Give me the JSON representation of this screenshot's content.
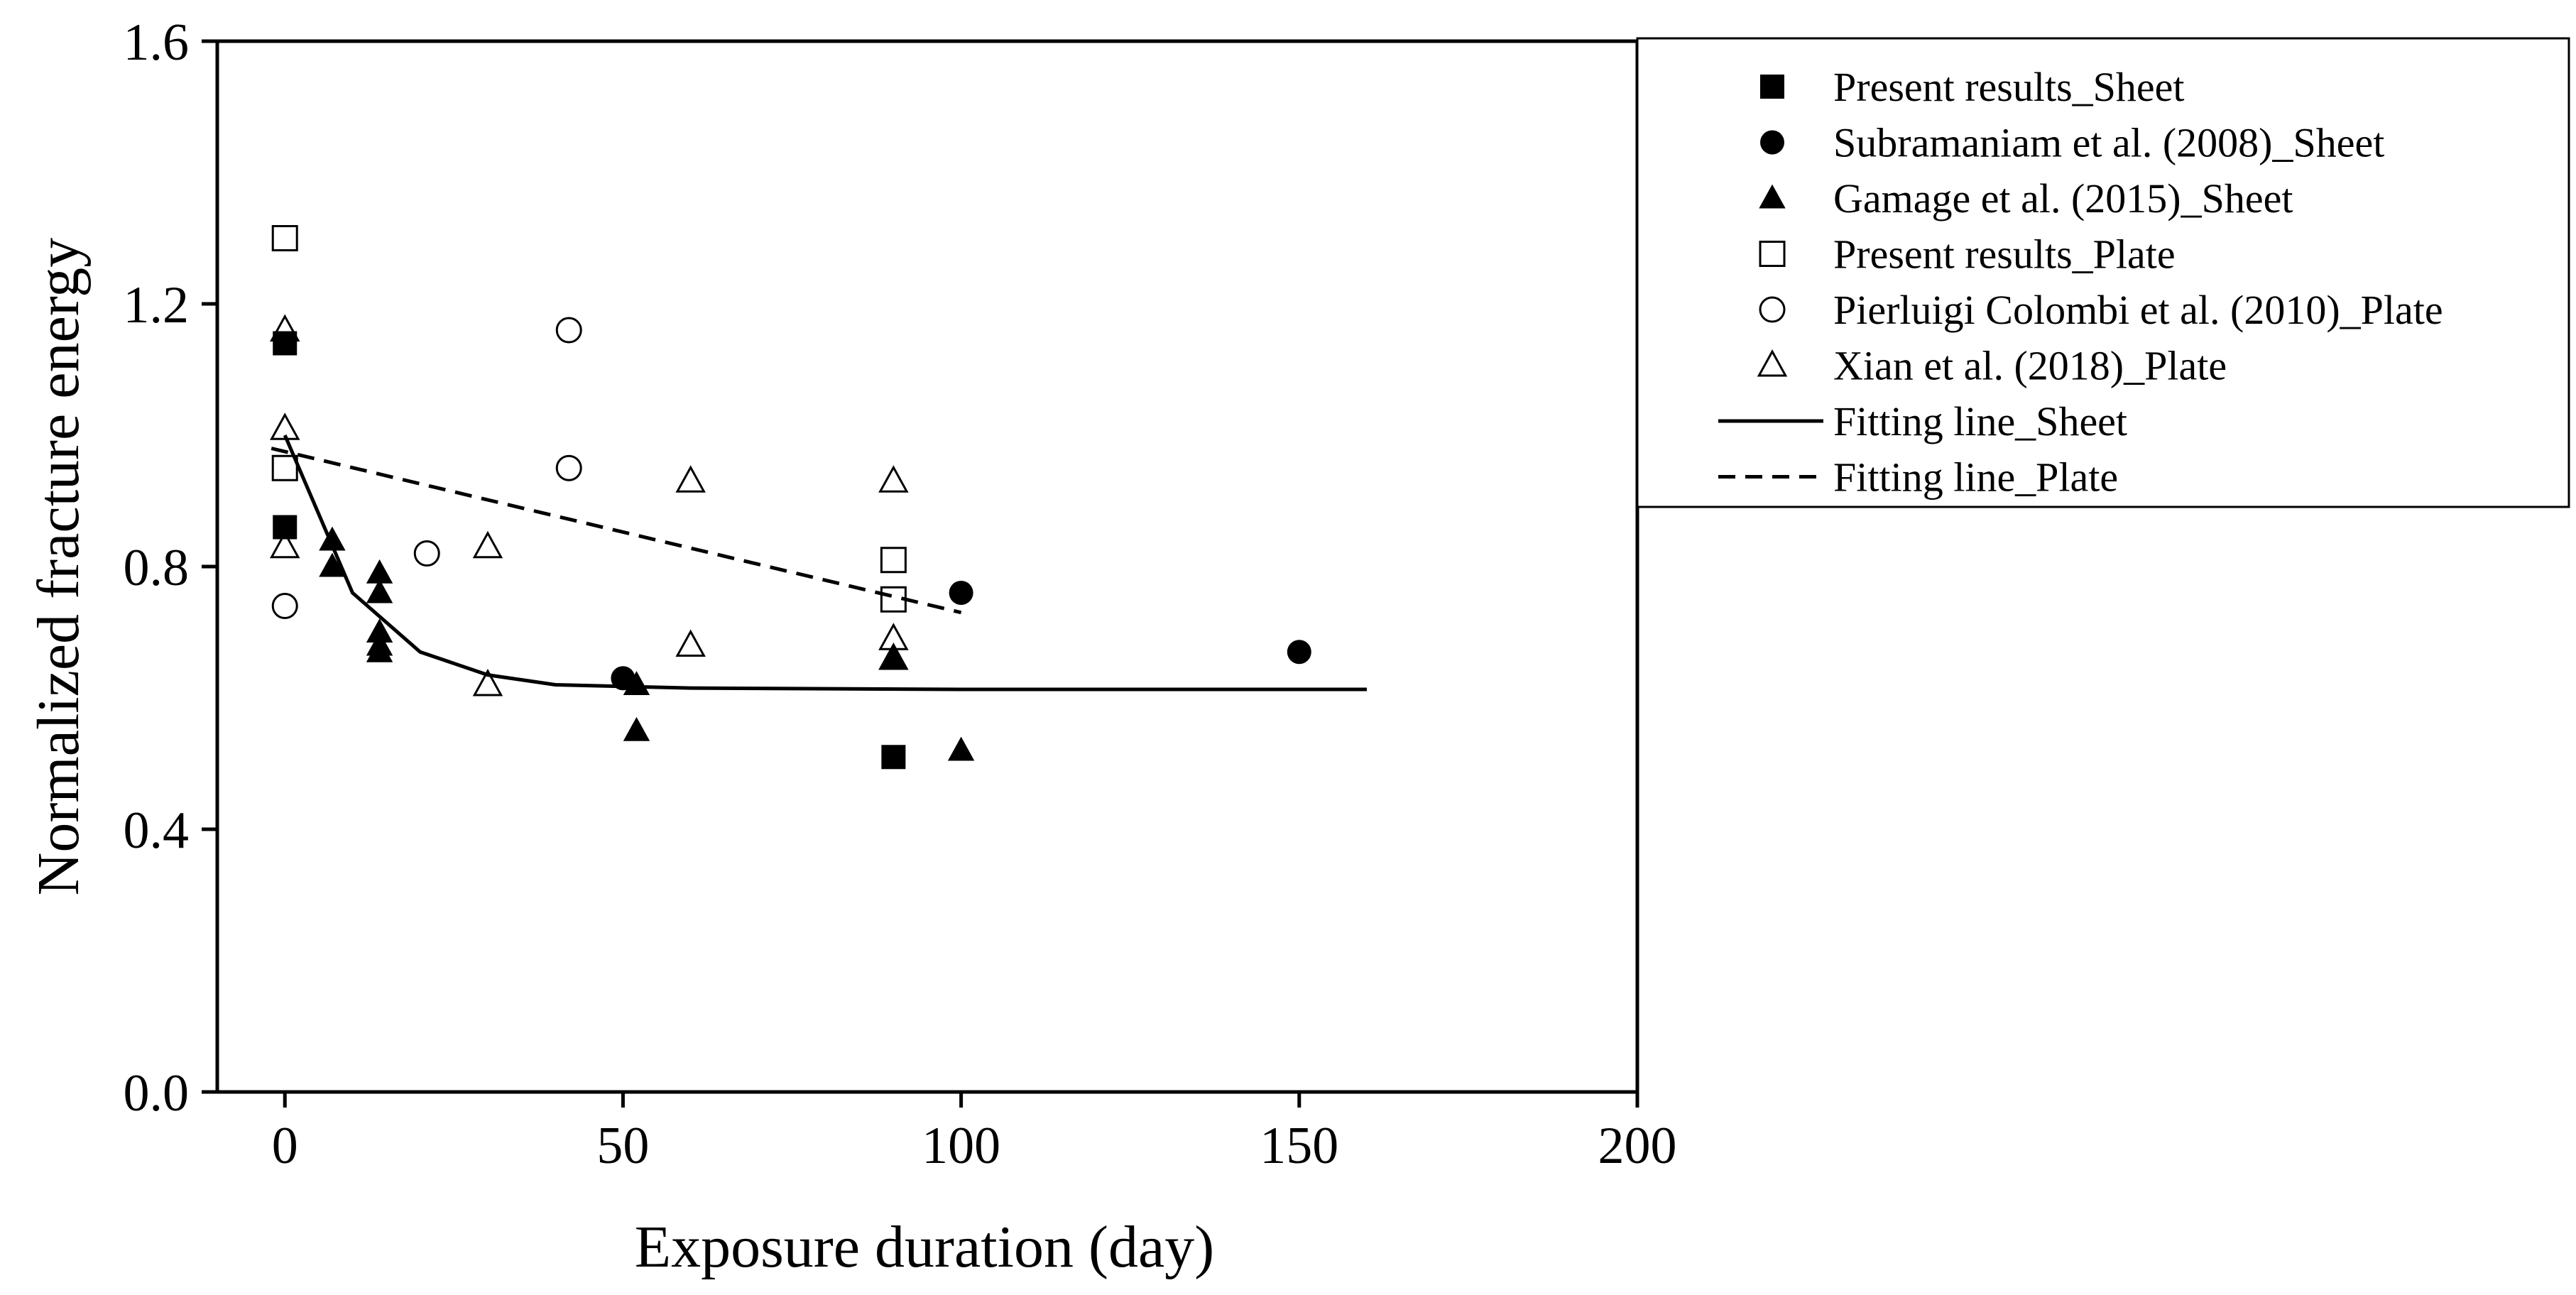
{
  "chart_data": {
    "type": "scatter",
    "title": "",
    "xlabel": "Exposure duration (day)",
    "ylabel": "Normalized fracture energy",
    "xlim": [
      -10,
      200
    ],
    "ylim": [
      0.0,
      1.6
    ],
    "xticks": [
      0,
      50,
      100,
      150,
      200
    ],
    "yticks": [
      0.0,
      0.4,
      0.8,
      1.2,
      1.6
    ],
    "xtick_labels": [
      "0",
      "50",
      "100",
      "150",
      "200"
    ],
    "ytick_labels": [
      "0.0",
      "0.4",
      "0.8",
      "1.2",
      "1.6"
    ],
    "grid": false,
    "legend_position": "outside-right-top",
    "series": [
      {
        "name": "Present results_Sheet",
        "marker": "square",
        "filled": true,
        "points": [
          [
            0,
            1.14
          ],
          [
            0,
            0.86
          ],
          [
            90,
            0.51
          ]
        ]
      },
      {
        "name": "Subramaniam et al. (2008)_Sheet",
        "marker": "circle",
        "filled": true,
        "points": [
          [
            50,
            0.63
          ],
          [
            100,
            0.76
          ],
          [
            150,
            0.67
          ]
        ]
      },
      {
        "name": "Gamage et al. (2015)_Sheet",
        "marker": "triangle",
        "filled": true,
        "points": [
          [
            7,
            0.84
          ],
          [
            7,
            0.8
          ],
          [
            14,
            0.79
          ],
          [
            14,
            0.76
          ],
          [
            14,
            0.7
          ],
          [
            14,
            0.68
          ],
          [
            14,
            0.67
          ],
          [
            52,
            0.62
          ],
          [
            52,
            0.55
          ],
          [
            90,
            0.66
          ],
          [
            100,
            0.52
          ]
        ]
      },
      {
        "name": "Present results_Plate",
        "marker": "square",
        "filled": false,
        "points": [
          [
            0,
            1.3
          ],
          [
            0,
            0.95
          ],
          [
            90,
            0.81
          ],
          [
            90,
            0.75
          ]
        ]
      },
      {
        "name": "Pierluigi Colombi et al. (2010)_Plate",
        "marker": "circle",
        "filled": false,
        "points": [
          [
            0,
            0.74
          ],
          [
            21,
            0.82
          ],
          [
            42,
            1.16
          ],
          [
            42,
            0.95
          ]
        ]
      },
      {
        "name": "Xian et al. (2018)_Plate",
        "marker": "triangle",
        "filled": false,
        "points": [
          [
            0,
            1.16
          ],
          [
            0,
            1.01
          ],
          [
            0,
            0.83
          ],
          [
            30,
            0.83
          ],
          [
            30,
            0.62
          ],
          [
            60,
            0.93
          ],
          [
            60,
            0.68
          ],
          [
            90,
            0.93
          ],
          [
            90,
            0.69
          ],
          [
            90,
            0.66
          ]
        ]
      },
      {
        "name": "Fitting line_Sheet",
        "line": "solid",
        "points": [
          [
            0,
            1.0
          ],
          [
            5,
            0.88
          ],
          [
            10,
            0.76
          ],
          [
            20,
            0.67
          ],
          [
            30,
            0.635
          ],
          [
            40,
            0.62
          ],
          [
            60,
            0.615
          ],
          [
            100,
            0.613
          ],
          [
            160,
            0.613
          ]
        ]
      },
      {
        "name": "Fitting line_Plate",
        "line": "dashed",
        "points": [
          [
            -2,
            0.98
          ],
          [
            100,
            0.73
          ]
        ]
      }
    ]
  }
}
